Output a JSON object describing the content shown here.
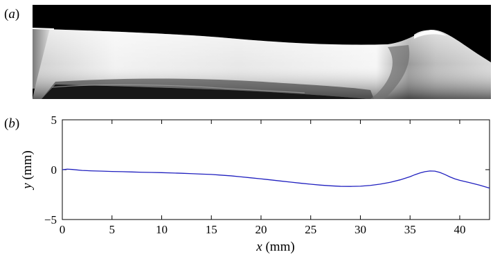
{
  "panels": {
    "a_label_open": "(",
    "a_label_letter": "a",
    "a_label_close": ")",
    "b_label_open": "(",
    "b_label_letter": "b",
    "b_label_close": ")"
  },
  "image_panel": {
    "description_hidden": ""
  },
  "chart_data": {
    "type": "line",
    "title": "",
    "xlabel_var": "x",
    "xlabel_unit": " (mm)",
    "ylabel_var": "y",
    "ylabel_unit": " (mm)",
    "xlim": [
      0,
      43
    ],
    "ylim": [
      -5,
      5
    ],
    "xticks": [
      0,
      5,
      10,
      15,
      20,
      25,
      30,
      35,
      40
    ],
    "xtick_labels": [
      "0",
      "5",
      "10",
      "15",
      "20",
      "25",
      "30",
      "35",
      "40"
    ],
    "yticks": [
      5,
      0,
      -5
    ],
    "ytick_labels": [
      "5",
      "0",
      "−5"
    ],
    "grid": false,
    "line_color": "#1f1fbf",
    "series": [
      {
        "x": [
          0,
          0.5,
          1,
          2,
          3,
          4,
          5,
          6,
          7,
          8,
          9,
          10,
          11,
          12,
          13,
          14,
          15,
          16,
          17,
          18,
          19,
          20,
          21,
          22,
          23,
          24,
          25,
          26,
          27,
          28,
          29,
          30,
          31,
          32,
          33,
          34,
          35,
          35.5,
          36,
          36.5,
          37,
          37.5,
          38,
          38.5,
          39,
          39.5,
          40,
          41,
          42,
          43
        ],
        "y": [
          0.0,
          0.05,
          0.02,
          -0.08,
          -0.12,
          -0.15,
          -0.18,
          -0.2,
          -0.23,
          -0.26,
          -0.28,
          -0.3,
          -0.33,
          -0.36,
          -0.4,
          -0.44,
          -0.48,
          -0.55,
          -0.62,
          -0.72,
          -0.82,
          -0.92,
          -1.03,
          -1.14,
          -1.25,
          -1.36,
          -1.46,
          -1.55,
          -1.62,
          -1.67,
          -1.68,
          -1.66,
          -1.58,
          -1.45,
          -1.27,
          -1.02,
          -0.7,
          -0.5,
          -0.33,
          -0.2,
          -0.13,
          -0.15,
          -0.28,
          -0.48,
          -0.72,
          -0.92,
          -1.07,
          -1.3,
          -1.55,
          -1.85
        ]
      }
    ]
  }
}
